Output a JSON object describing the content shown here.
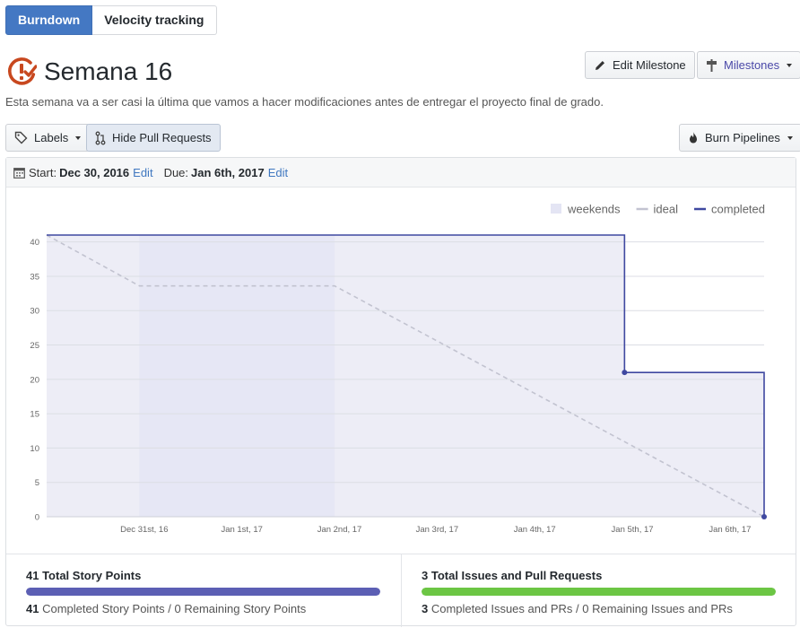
{
  "tabs": [
    {
      "label": "Burndown",
      "active": true
    },
    {
      "label": "Velocity tracking",
      "active": false
    }
  ],
  "milestone": {
    "title": "Semana 16",
    "description": "Esta semana va a ser casi la última que vamos a hacer modificaciones antes de entregar el proyecto final de grado."
  },
  "buttons": {
    "edit_milestone": "Edit Milestone",
    "milestones": "Milestones",
    "labels": "Labels",
    "hide_pull_requests": "Hide Pull Requests",
    "burn_pipelines": "Burn Pipelines"
  },
  "dates": {
    "start_label": "Start:",
    "start_value": "Dec 30, 2016",
    "start_edit": "Edit",
    "due_label": "Due:",
    "due_value": "Jan 6th, 2017",
    "due_edit": "Edit"
  },
  "chart_data": {
    "type": "area",
    "legend": {
      "position": "top-right",
      "items": [
        {
          "label": "weekends",
          "color": "#e4e5f4"
        },
        {
          "label": "ideal",
          "color": "#c2c3d0"
        },
        {
          "label": "completed",
          "color": "#3f48a0"
        }
      ]
    },
    "x_ticks": [
      {
        "day": 1,
        "label": "Dec 31st, 16"
      },
      {
        "day": 2,
        "label": "Jan 1st, 17"
      },
      {
        "day": 3,
        "label": "Jan 2nd, 17"
      },
      {
        "day": 4,
        "label": "Jan 3rd, 17"
      },
      {
        "day": 5,
        "label": "Jan 4th, 17"
      },
      {
        "day": 6,
        "label": "Jan 5th, 17"
      },
      {
        "day": 7,
        "label": "Jan 6th, 17"
      }
    ],
    "xlim": [
      0,
      7.35
    ],
    "ylim": [
      0,
      41
    ],
    "y_ticks": [
      0,
      5,
      10,
      15,
      20,
      25,
      30,
      35,
      40
    ],
    "weekends": [
      [
        0.95,
        2.95
      ]
    ],
    "ideal": {
      "x": [
        0,
        0.95,
        2.95,
        7.35
      ],
      "y": [
        41,
        33.6,
        33.6,
        0
      ]
    },
    "completed": {
      "x": [
        0,
        5.92,
        5.92,
        7.35,
        7.35
      ],
      "y": [
        41,
        41,
        21,
        21,
        0
      ],
      "markers": [
        [
          5.92,
          21
        ],
        [
          7.35,
          0
        ]
      ]
    },
    "grid": true
  },
  "stats": {
    "story_points": {
      "title": "41 Total Story Points",
      "completed_count": "41",
      "completed_text": "Completed Story Points",
      "remaining_text": "/ 0 Remaining Story Points",
      "progress": 1.0,
      "color": "#5c5fb4"
    },
    "issues": {
      "title": "3 Total Issues and Pull Requests",
      "completed_count": "3",
      "completed_text": "Completed Issues and PRs",
      "remaining_text": "/ 0 Remaining Issues and PRs",
      "progress": 1.0,
      "color": "#6cc644"
    }
  }
}
